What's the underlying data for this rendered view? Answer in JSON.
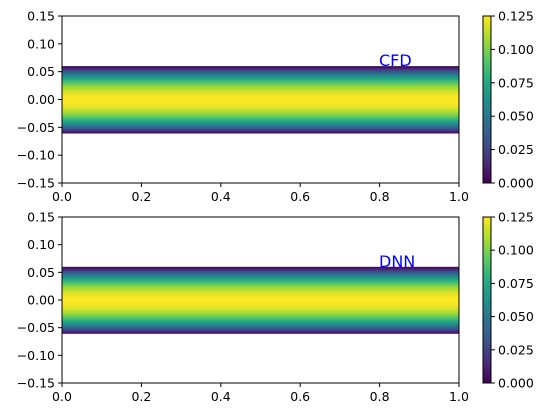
{
  "chart_data": [
    {
      "type": "heatmap",
      "annotation": "CFD",
      "xlim": [
        0.0,
        1.0
      ],
      "ylim": [
        -0.15,
        0.15
      ],
      "x_ticks": [
        "0.0",
        "0.2",
        "0.4",
        "0.6",
        "0.8",
        "1.0"
      ],
      "y_ticks": [
        "0.15",
        "0.10",
        "0.05",
        "0.00",
        "−0.05",
        "−0.10",
        "−0.15"
      ],
      "field": {
        "description": "parabolic channel profile",
        "y_range": [
          -0.06,
          0.06
        ],
        "max_value": 0.125
      },
      "colorbar": {
        "range": [
          0.0,
          0.125
        ],
        "ticks": [
          "0.000",
          "0.025",
          "0.050",
          "0.075",
          "0.100",
          "0.125"
        ]
      }
    },
    {
      "type": "heatmap",
      "annotation": "DNN",
      "xlim": [
        0.0,
        1.0
      ],
      "ylim": [
        -0.15,
        0.15
      ],
      "x_ticks": [
        "0.0",
        "0.2",
        "0.4",
        "0.6",
        "0.8",
        "1.0"
      ],
      "y_ticks": [
        "0.15",
        "0.10",
        "0.05",
        "0.00",
        "−0.05",
        "−0.10",
        "−0.15"
      ],
      "field": {
        "description": "parabolic channel profile",
        "y_range": [
          -0.06,
          0.06
        ],
        "max_value": 0.125
      },
      "colorbar": {
        "range": [
          0.0,
          0.125
        ],
        "ticks": [
          "0.000",
          "0.025",
          "0.050",
          "0.075",
          "0.100",
          "0.125"
        ]
      }
    }
  ],
  "colors": {
    "annotation": "#0000ff",
    "colormap": "viridis"
  }
}
